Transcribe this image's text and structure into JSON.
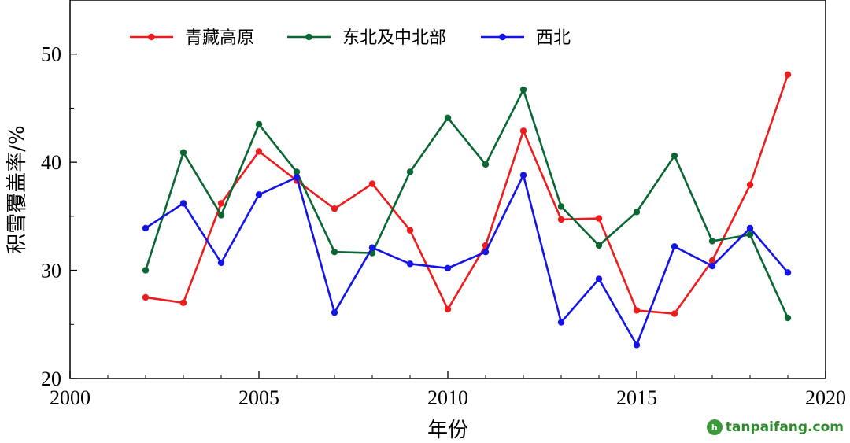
{
  "chart_data": {
    "type": "line",
    "xlabel": "年份",
    "ylabel": "积雪覆盖率/%",
    "xlim": [
      2000,
      2020
    ],
    "ylim": [
      20,
      55
    ],
    "xticks": [
      2000,
      2005,
      2010,
      2015,
      2020
    ],
    "yticks": [
      20,
      30,
      40,
      50
    ],
    "legend_position": "top-left",
    "grid": false,
    "x": [
      2002,
      2003,
      2004,
      2005,
      2006,
      2007,
      2008,
      2009,
      2010,
      2011,
      2012,
      2013,
      2014,
      2015,
      2016,
      2017,
      2018,
      2019
    ],
    "series": [
      {
        "name": "青藏高原",
        "color": "#ee1c1c",
        "values": [
          27.5,
          27.0,
          36.2,
          41.0,
          38.3,
          35.7,
          38.0,
          33.7,
          26.4,
          32.3,
          42.9,
          34.7,
          34.8,
          26.3,
          26.0,
          30.9,
          37.9,
          48.1
        ]
      },
      {
        "name": "东北及中北部",
        "color": "#0a6632",
        "values": [
          30.0,
          40.9,
          35.1,
          43.5,
          39.1,
          31.7,
          31.6,
          39.1,
          44.1,
          39.8,
          46.7,
          35.9,
          32.3,
          35.4,
          40.6,
          32.7,
          33.3,
          25.6
        ]
      },
      {
        "name": "西北",
        "color": "#1414e6",
        "values": [
          33.9,
          36.2,
          30.7,
          37.0,
          38.6,
          26.1,
          32.1,
          30.6,
          30.2,
          31.7,
          38.8,
          25.2,
          29.2,
          23.1,
          32.2,
          30.4,
          33.9,
          29.8
        ]
      }
    ]
  },
  "watermark": {
    "logo": "h",
    "text": "tanpaifang.com"
  }
}
